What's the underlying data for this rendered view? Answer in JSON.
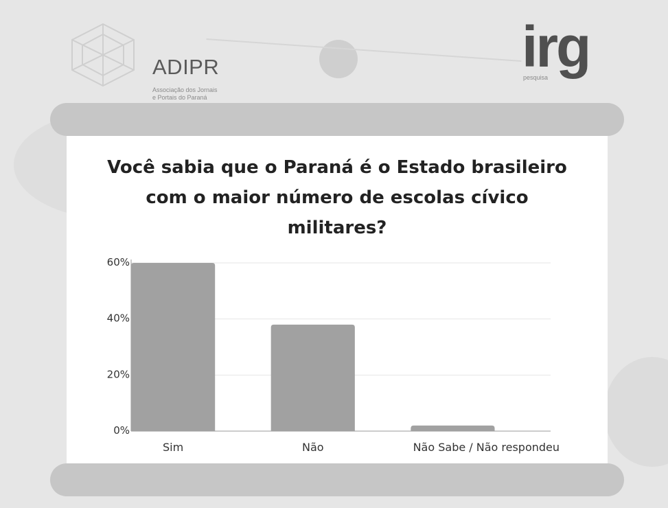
{
  "branding": {
    "adipr_title": "ADIPR",
    "adipr_subtitle_line1": "Associação dos Jornais",
    "adipr_subtitle_line2": "e Portais do Paraná",
    "irg_title": "irg",
    "irg_subtitle": "pesquisa"
  },
  "colors": {
    "bar": "#a1a1a1",
    "grid": "#e6e6e6",
    "axis": "#9a9a9a",
    "text": "#333333"
  },
  "chart_data": {
    "type": "bar",
    "title": "Você sabia que o Paraná é o Estado brasileiro com o maior número de escolas cívico militares?",
    "title_lines": [
      "Você sabia que o Paraná é o Estado brasileiro",
      "com o maior número de escolas cívico",
      "militares?"
    ],
    "categories": [
      "Sim",
      "Não",
      "Não Sabe / Não respondeu"
    ],
    "values": [
      60,
      38,
      2
    ],
    "y_ticks": [
      0,
      20,
      40,
      60
    ],
    "y_tick_labels": [
      "0%",
      "20%",
      "40%",
      "60%"
    ],
    "ylim": [
      0,
      60
    ],
    "grid": true,
    "legend": "none"
  }
}
